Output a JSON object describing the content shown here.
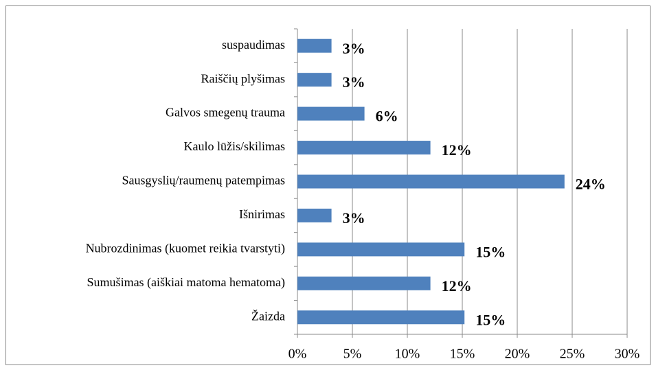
{
  "chart_data": {
    "type": "bar",
    "orientation": "horizontal",
    "categories": [
      "suspaudimas",
      "Raiščių plyšimas",
      "Galvos smegenų trauma",
      "Kaulo lūžis/skilimas",
      "Sausgyslių/raumenų patempimas",
      "Išnirimas",
      "Nubrozdinimas (kuomet reikia tvarstyti)",
      "Sumušimas (aiškiai matoma hematoma)",
      "Žaizda"
    ],
    "values": [
      3.1,
      3.1,
      6.1,
      12.1,
      24.3,
      3.1,
      15.2,
      12.1,
      15.2
    ],
    "value_labels": [
      "3%",
      "3%",
      "6%",
      "12%",
      "24%",
      "3%",
      "15%",
      "12%",
      "15%"
    ],
    "color": "#4f81bd",
    "xlim": [
      0,
      30
    ],
    "xticks": [
      {
        "value": 0,
        "label": "0%"
      },
      {
        "value": 5,
        "label": "5%"
      },
      {
        "value": 10,
        "label": "10%"
      },
      {
        "value": 15,
        "label": "15%"
      },
      {
        "value": 20,
        "label": "20%"
      },
      {
        "value": 25,
        "label": "25%"
      },
      {
        "value": 30,
        "label": "30%"
      }
    ],
    "grid": true
  }
}
